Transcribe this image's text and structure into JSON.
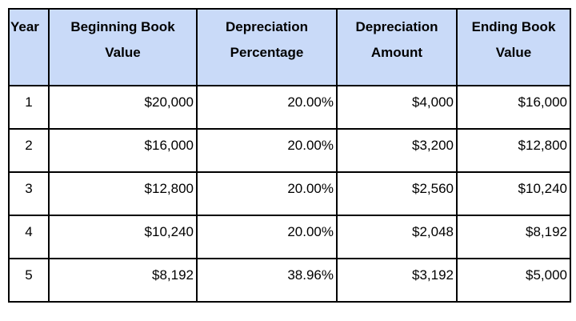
{
  "table": {
    "header": [
      "Year",
      "Beginning Book Value",
      "Depreciation Percentage",
      "Depreciation Amount",
      "Ending Book Value"
    ],
    "rows": [
      [
        "1",
        "$20,000",
        "20.00%",
        "$4,000",
        "$16,000"
      ],
      [
        "2",
        "$16,000",
        "20.00%",
        "$3,200",
        "$12,800"
      ],
      [
        "3",
        "$12,800",
        "20.00%",
        "$2,560",
        "$10,240"
      ],
      [
        "4",
        "$10,240",
        "20.00%",
        "$2,048",
        "$8,192"
      ],
      [
        "5",
        "$8,192",
        "38.96%",
        "$3,192",
        "$5,000"
      ]
    ]
  }
}
